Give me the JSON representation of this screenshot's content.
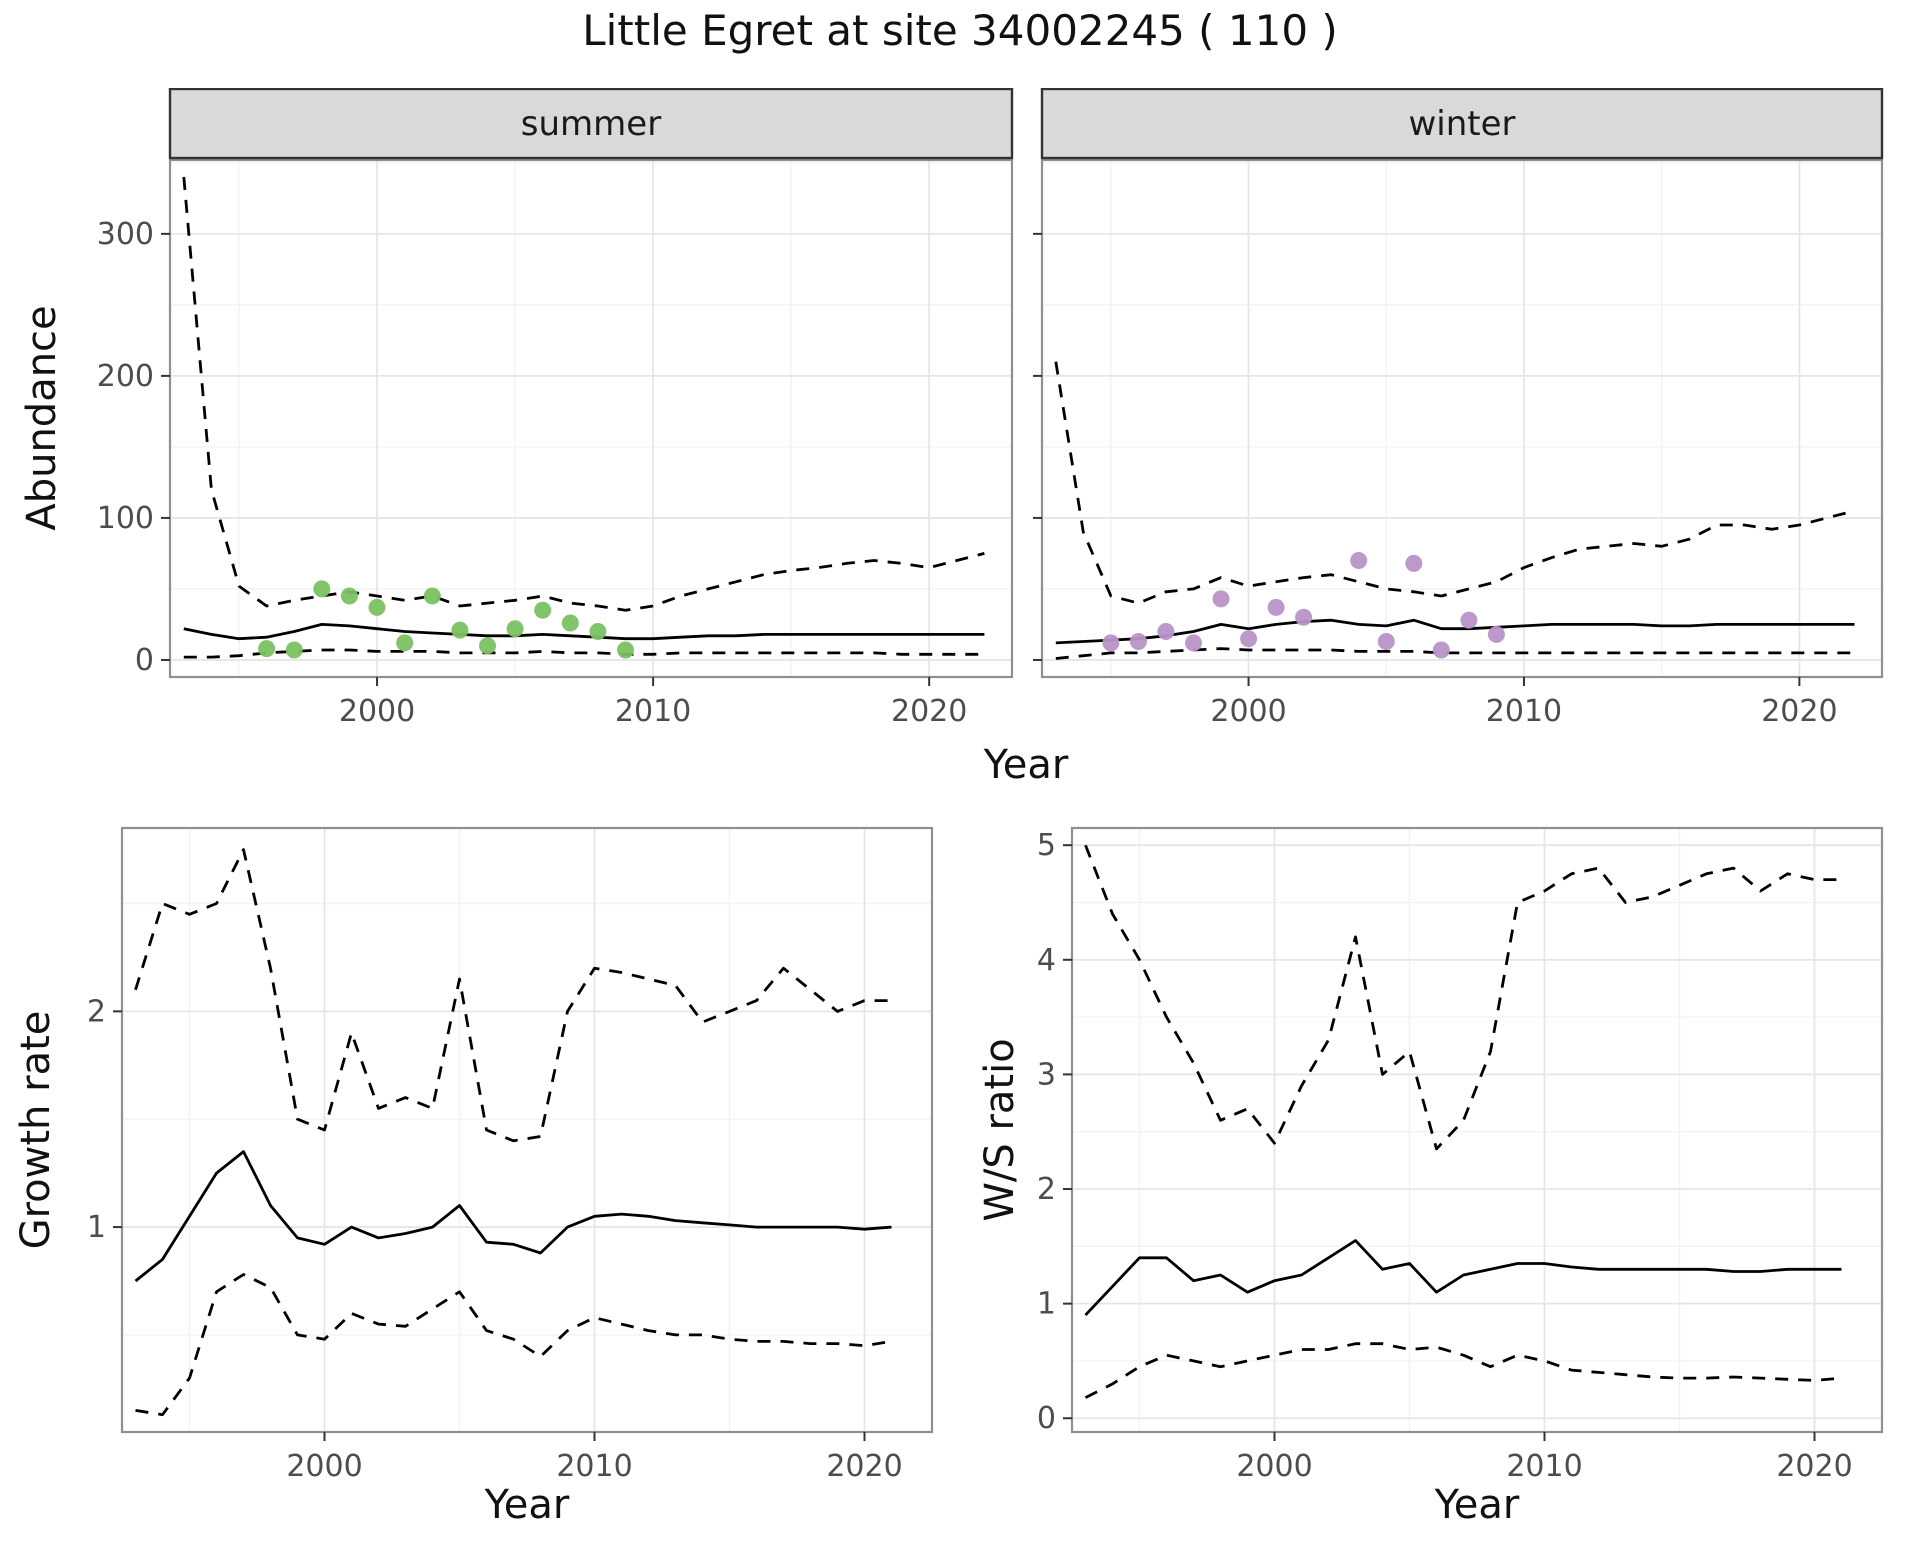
{
  "title": "Little Egret at site 34002245 ( 110 )",
  "axes": {
    "x_label": "Year",
    "abundance_label": "Abundance"
  },
  "colors": {
    "summer_points": "#7bc162",
    "winter_points": "#b892c8",
    "line": "#000000",
    "strip_fill": "#d9d9d9"
  },
  "chart_data": [
    {
      "id": "abundance-summer",
      "type": "line",
      "facet_label": "summer",
      "xlabel": "Year",
      "ylabel": "Abundance",
      "xlim": [
        1992.5,
        2023
      ],
      "ylim": [
        -12,
        352
      ],
      "xticks": [
        2000,
        2010,
        2020
      ],
      "yticks": [
        0,
        100,
        200,
        300
      ],
      "grid": true,
      "x": [
        1993,
        1994,
        1995,
        1996,
        1997,
        1998,
        1999,
        2000,
        2001,
        2002,
        2003,
        2004,
        2005,
        2006,
        2007,
        2008,
        2009,
        2010,
        2011,
        2012,
        2013,
        2014,
        2015,
        2016,
        2017,
        2018,
        2019,
        2020,
        2021,
        2022
      ],
      "series": [
        {
          "name": "upper-ci",
          "style": "dashed",
          "color": "#000000",
          "y": [
            340,
            120,
            52,
            38,
            42,
            45,
            48,
            45,
            42,
            45,
            38,
            40,
            42,
            45,
            40,
            38,
            35,
            38,
            45,
            50,
            55,
            60,
            63,
            65,
            68,
            70,
            68,
            65,
            70,
            75
          ]
        },
        {
          "name": "median",
          "style": "solid",
          "color": "#000000",
          "y": [
            22,
            18,
            15,
            16,
            20,
            25,
            24,
            22,
            20,
            19,
            18,
            17,
            17,
            18,
            17,
            16,
            15,
            15,
            16,
            17,
            17,
            18,
            18,
            18,
            18,
            18,
            18,
            18,
            18,
            18
          ]
        },
        {
          "name": "lower-ci",
          "style": "dashed",
          "color": "#000000",
          "y": [
            2,
            2,
            3,
            5,
            6,
            7,
            7,
            6,
            6,
            6,
            5,
            5,
            5,
            6,
            5,
            5,
            4,
            4,
            5,
            5,
            5,
            5,
            5,
            5,
            5,
            5,
            4,
            4,
            4,
            4
          ]
        },
        {
          "name": "observations",
          "style": "points",
          "color": "#7bc162",
          "x": [
            1996,
            1997,
            1998,
            1999,
            2000,
            2001,
            2002,
            2003,
            2004,
            2005,
            2006,
            2007,
            2008,
            2009
          ],
          "y": [
            8,
            7,
            50,
            45,
            37,
            12,
            45,
            21,
            10,
            22,
            35,
            26,
            20,
            7
          ]
        }
      ]
    },
    {
      "id": "abundance-winter",
      "type": "line",
      "facet_label": "winter",
      "xlabel": "Year",
      "ylabel": "Abundance",
      "xlim": [
        1992.5,
        2023
      ],
      "ylim": [
        -12,
        352
      ],
      "xticks": [
        2000,
        2010,
        2020
      ],
      "yticks": [
        0,
        100,
        200,
        300
      ],
      "grid": true,
      "x": [
        1993,
        1994,
        1995,
        1996,
        1997,
        1998,
        1999,
        2000,
        2001,
        2002,
        2003,
        2004,
        2005,
        2006,
        2007,
        2008,
        2009,
        2010,
        2011,
        2012,
        2013,
        2014,
        2015,
        2016,
        2017,
        2018,
        2019,
        2020,
        2021,
        2022
      ],
      "series": [
        {
          "name": "upper-ci",
          "style": "dashed",
          "color": "#000000",
          "y": [
            210,
            90,
            45,
            40,
            48,
            50,
            58,
            52,
            55,
            58,
            60,
            55,
            50,
            48,
            45,
            50,
            55,
            65,
            72,
            78,
            80,
            82,
            80,
            85,
            95,
            95,
            92,
            95,
            100,
            105
          ]
        },
        {
          "name": "median",
          "style": "solid",
          "color": "#000000",
          "y": [
            12,
            13,
            14,
            15,
            17,
            20,
            25,
            22,
            25,
            27,
            28,
            25,
            24,
            28,
            22,
            22,
            23,
            24,
            25,
            25,
            25,
            25,
            24,
            24,
            25,
            25,
            25,
            25,
            25,
            25
          ]
        },
        {
          "name": "lower-ci",
          "style": "dashed",
          "color": "#000000",
          "y": [
            1,
            3,
            5,
            5,
            6,
            7,
            8,
            7,
            7,
            7,
            7,
            6,
            6,
            6,
            5,
            5,
            5,
            5,
            5,
            5,
            5,
            5,
            5,
            5,
            5,
            5,
            5,
            5,
            5,
            5
          ]
        },
        {
          "name": "observations",
          "style": "points",
          "color": "#b892c8",
          "x": [
            1995,
            1996,
            1997,
            1998,
            1999,
            2000,
            2001,
            2002,
            2004,
            2005,
            2006,
            2007,
            2008,
            2009
          ],
          "y": [
            12,
            13,
            20,
            12,
            43,
            15,
            37,
            30,
            70,
            13,
            68,
            7,
            28,
            18
          ]
        }
      ]
    },
    {
      "id": "growth-rate",
      "type": "line",
      "facet_label": "",
      "xlabel": "Year",
      "ylabel": "Growth rate",
      "xlim": [
        1992.5,
        2022.5
      ],
      "ylim": [
        0.05,
        2.85
      ],
      "xticks": [
        2000,
        2010,
        2020
      ],
      "yticks": [
        1,
        2
      ],
      "grid": true,
      "x": [
        1993,
        1994,
        1995,
        1996,
        1997,
        1998,
        1999,
        2000,
        2001,
        2002,
        2003,
        2004,
        2005,
        2006,
        2007,
        2008,
        2009,
        2010,
        2011,
        2012,
        2013,
        2014,
        2015,
        2016,
        2017,
        2018,
        2019,
        2020,
        2021
      ],
      "series": [
        {
          "name": "upper-ci",
          "style": "dashed",
          "color": "#000000",
          "y": [
            2.1,
            2.5,
            2.45,
            2.5,
            2.75,
            2.2,
            1.5,
            1.45,
            1.9,
            1.55,
            1.6,
            1.55,
            2.15,
            1.45,
            1.4,
            1.42,
            2.0,
            2.2,
            2.18,
            2.15,
            2.12,
            1.95,
            2.0,
            2.05,
            2.2,
            2.1,
            2.0,
            2.05,
            2.05
          ]
        },
        {
          "name": "median",
          "style": "solid",
          "color": "#000000",
          "y": [
            0.75,
            0.85,
            1.05,
            1.25,
            1.35,
            1.1,
            0.95,
            0.92,
            1.0,
            0.95,
            0.97,
            1.0,
            1.1,
            0.93,
            0.92,
            0.88,
            1.0,
            1.05,
            1.06,
            1.05,
            1.03,
            1.02,
            1.01,
            1.0,
            1.0,
            1.0,
            1.0,
            0.99,
            1.0
          ]
        },
        {
          "name": "lower-ci",
          "style": "dashed",
          "color": "#000000",
          "y": [
            0.15,
            0.13,
            0.3,
            0.7,
            0.78,
            0.72,
            0.5,
            0.48,
            0.6,
            0.55,
            0.54,
            0.62,
            0.7,
            0.52,
            0.48,
            0.4,
            0.52,
            0.58,
            0.55,
            0.52,
            0.5,
            0.5,
            0.48,
            0.47,
            0.47,
            0.46,
            0.46,
            0.45,
            0.47
          ]
        }
      ]
    },
    {
      "id": "ws-ratio",
      "type": "line",
      "facet_label": "",
      "xlabel": "Year",
      "ylabel": "W/S ratio",
      "xlim": [
        1992.5,
        2022.5
      ],
      "ylim": [
        -0.12,
        5.15
      ],
      "xticks": [
        2000,
        2010,
        2020
      ],
      "yticks": [
        0,
        1,
        2,
        3,
        4,
        5
      ],
      "grid": true,
      "x": [
        1993,
        1994,
        1995,
        1996,
        1997,
        1998,
        1999,
        2000,
        2001,
        2002,
        2003,
        2004,
        2005,
        2006,
        2007,
        2008,
        2009,
        2010,
        2011,
        2012,
        2013,
        2014,
        2015,
        2016,
        2017,
        2018,
        2019,
        2020,
        2021
      ],
      "series": [
        {
          "name": "upper-ci",
          "style": "dashed",
          "color": "#000000",
          "y": [
            5.0,
            4.4,
            4.0,
            3.5,
            3.1,
            2.6,
            2.7,
            2.4,
            2.9,
            3.3,
            4.2,
            3.0,
            3.2,
            2.35,
            2.6,
            3.2,
            4.5,
            4.6,
            4.75,
            4.8,
            4.5,
            4.55,
            4.65,
            4.75,
            4.8,
            4.6,
            4.75,
            4.7,
            4.7
          ]
        },
        {
          "name": "median",
          "style": "solid",
          "color": "#000000",
          "y": [
            0.9,
            1.15,
            1.4,
            1.4,
            1.2,
            1.25,
            1.1,
            1.2,
            1.25,
            1.4,
            1.55,
            1.3,
            1.35,
            1.1,
            1.25,
            1.3,
            1.35,
            1.35,
            1.32,
            1.3,
            1.3,
            1.3,
            1.3,
            1.3,
            1.28,
            1.28,
            1.3,
            1.3,
            1.3
          ]
        },
        {
          "name": "lower-ci",
          "style": "dashed",
          "color": "#000000",
          "y": [
            0.18,
            0.3,
            0.45,
            0.55,
            0.5,
            0.45,
            0.5,
            0.55,
            0.6,
            0.6,
            0.65,
            0.65,
            0.6,
            0.62,
            0.55,
            0.45,
            0.55,
            0.5,
            0.42,
            0.4,
            0.38,
            0.36,
            0.35,
            0.35,
            0.36,
            0.35,
            0.34,
            0.33,
            0.35
          ]
        }
      ]
    }
  ]
}
